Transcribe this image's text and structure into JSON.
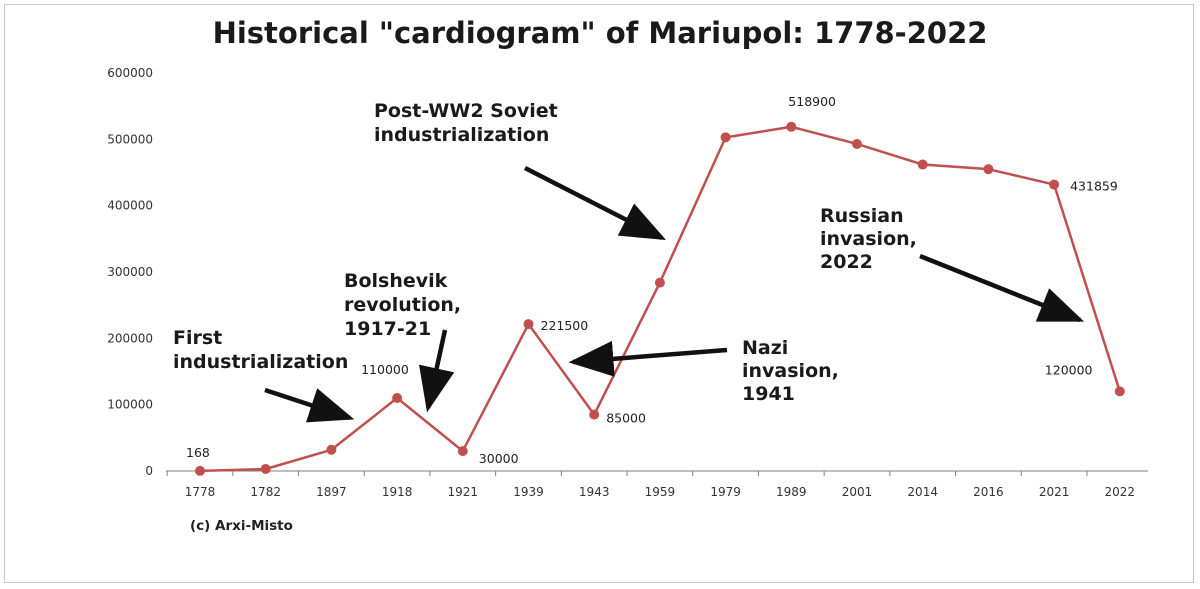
{
  "chart_data": {
    "type": "line",
    "title": "Historical \"cardiogram\" of Mariupol: 1778-2022",
    "categories": [
      "1778",
      "1782",
      "1897",
      "1918",
      "1921",
      "1939",
      "1943",
      "1959",
      "1979",
      "1989",
      "2001",
      "2014",
      "2016",
      "2021",
      "2022"
    ],
    "series": [
      {
        "values": [
          168,
          3000,
          32000,
          110000,
          30000,
          221500,
          85000,
          284000,
          503000,
          518900,
          493000,
          462000,
          455000,
          431859,
          120000
        ]
      }
    ],
    "ylim": [
      0,
      600000
    ],
    "yticks": [
      "0",
      "100000",
      "200000",
      "300000",
      "400000",
      "500000",
      "600000"
    ],
    "data_labels": [
      {
        "index": 0,
        "text": "168"
      },
      {
        "index": 3,
        "text": "110000"
      },
      {
        "index": 4,
        "text": "30000"
      },
      {
        "index": 5,
        "text": "221500"
      },
      {
        "index": 6,
        "text": "85000"
      },
      {
        "index": 9,
        "text": "518900"
      },
      {
        "index": 13,
        "text": "431859"
      },
      {
        "index": 14,
        "text": "120000"
      }
    ],
    "annotations": [
      {
        "id": "first-industrialization",
        "lines": [
          "First",
          "industrialization"
        ]
      },
      {
        "id": "bolshevik-revolution",
        "lines": [
          "Bolshevik",
          "revolution,",
          "1917-21"
        ]
      },
      {
        "id": "post-ww2",
        "lines": [
          "Post-WW2 Soviet",
          "industrialization"
        ]
      },
      {
        "id": "nazi-invasion",
        "lines": [
          "Nazi",
          "invasion,",
          "1941"
        ]
      },
      {
        "id": "russian-invasion",
        "lines": [
          "Russian",
          "invasion,",
          "2022"
        ]
      }
    ],
    "grid": false,
    "colors": {
      "line": "#c0504d",
      "marker": "#c0504d",
      "arrow": "#111111"
    }
  },
  "credit": "(c) Arxi-Misto"
}
